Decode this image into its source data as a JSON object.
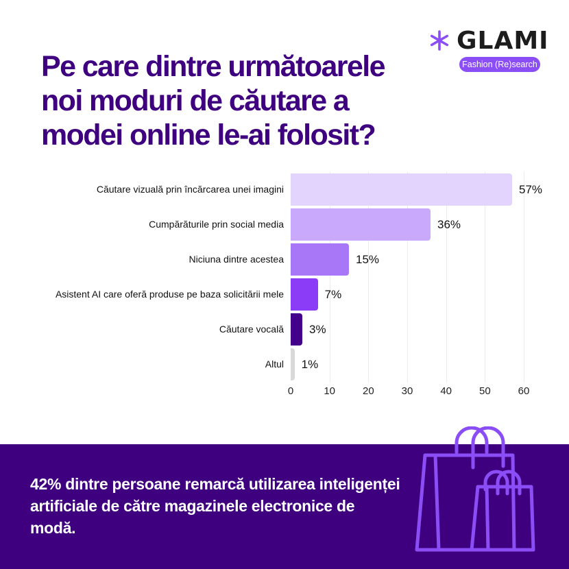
{
  "brand": {
    "name": "GLAMI",
    "tagline": "Fashion (Re)search",
    "icon": "asterisk-icon",
    "accent_color": "#8b4df5",
    "dark_color": "#3f0080"
  },
  "title": "Pe care dintre următoarele noi moduri de căutare a modei online le-ai folosit?",
  "chart_data": {
    "type": "bar",
    "orientation": "horizontal",
    "title": "Pe care dintre următoarele noi moduri de căutare a modei online le-ai folosit?",
    "categories": [
      "Căutare vizuală prin încărcarea unei imagini",
      "Cumpărăturile prin social media",
      "Niciuna dintre acestea",
      "Asistent AI care oferă produse pe baza solicitării mele",
      "Căutare vocală",
      "Altul"
    ],
    "values": [
      57,
      36,
      15,
      7,
      3,
      1
    ],
    "value_labels": [
      "57%",
      "36%",
      "15%",
      "7%",
      "3%",
      "1%"
    ],
    "colors": [
      "#e2d4fd",
      "#c9a9fc",
      "#a877f8",
      "#8a3cf7",
      "#43008a",
      "#d9d9d9"
    ],
    "xlabel": "",
    "ylabel": "",
    "xlim": [
      0,
      60
    ],
    "xticks": [
      "0",
      "10",
      "20",
      "30",
      "40",
      "50",
      "60"
    ],
    "grid": true,
    "legend": null
  },
  "footer": {
    "statement": "42% dintre persoane remarcă utilizarea inteligenței artificiale de către magazinele electronice de modă.",
    "icon": "shopping-bags-icon"
  }
}
